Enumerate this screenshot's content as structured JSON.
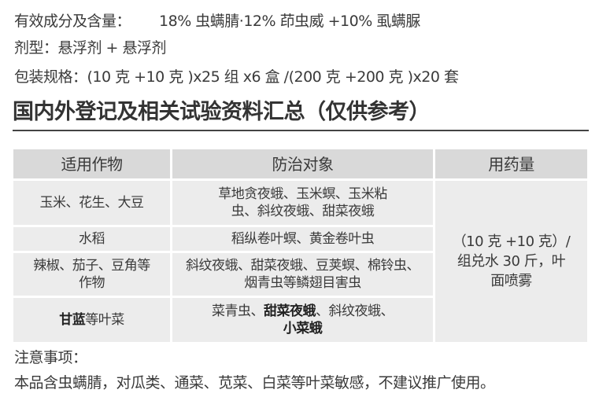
{
  "info": {
    "ingredients_label": "有效成分及含量：",
    "ingredients_value": "18% 虫螨腈·12% 茚虫威 +10% 虱螨脲",
    "formulation": "剂型：悬浮剂 + 悬浮剂",
    "packaging": "包装规格：(10 克 +10 克 )x25 组 x6 盒 /(200 克 +200 克 )x20 套"
  },
  "title": "国内外登记及相关试验资料汇总（仅供参考）",
  "table": {
    "headers": [
      "适用作物",
      "防治对象",
      "用药量"
    ],
    "rows": [
      {
        "crop": [
          {
            "t": "玉米、花生、大豆",
            "b": false
          }
        ],
        "pest": [
          {
            "t": "草地贪夜蛾、玉米螟、玉米粘虫、斜纹夜蛾、甜菜夜蛾",
            "b": false
          }
        ]
      },
      {
        "crop": [
          {
            "t": "水稻",
            "b": false
          }
        ],
        "pest": [
          {
            "t": "稻纵卷叶螟、黄金卷叶虫",
            "b": false
          }
        ]
      },
      {
        "crop": [
          {
            "t": "辣椒、茄子、豆角等作物",
            "b": false
          }
        ],
        "pest": [
          {
            "t": "斜纹夜蛾、甜菜夜蛾、豆荚螟、棉铃虫、烟青虫等鳞翅目害虫",
            "b": false
          }
        ]
      },
      {
        "crop": [
          {
            "t": "甘蓝",
            "b": true
          },
          {
            "t": "等叶菜",
            "b": false
          }
        ],
        "pest": [
          {
            "t": "菜青虫、",
            "b": false
          },
          {
            "t": "甜菜夜蛾",
            "b": true
          },
          {
            "t": "、斜纹夜蛾、",
            "b": false
          },
          {
            "t": "小菜蛾",
            "b": true
          }
        ]
      }
    ],
    "dosage": "（10 克 +10 克）/ 组兑水 30 斤，叶面喷雾"
  },
  "notes": {
    "label": "注意事项：",
    "text": "本品含虫螨腈，对瓜类、通菜、苋菜、白菜等叶菜敏感，不建议推广使用。"
  }
}
